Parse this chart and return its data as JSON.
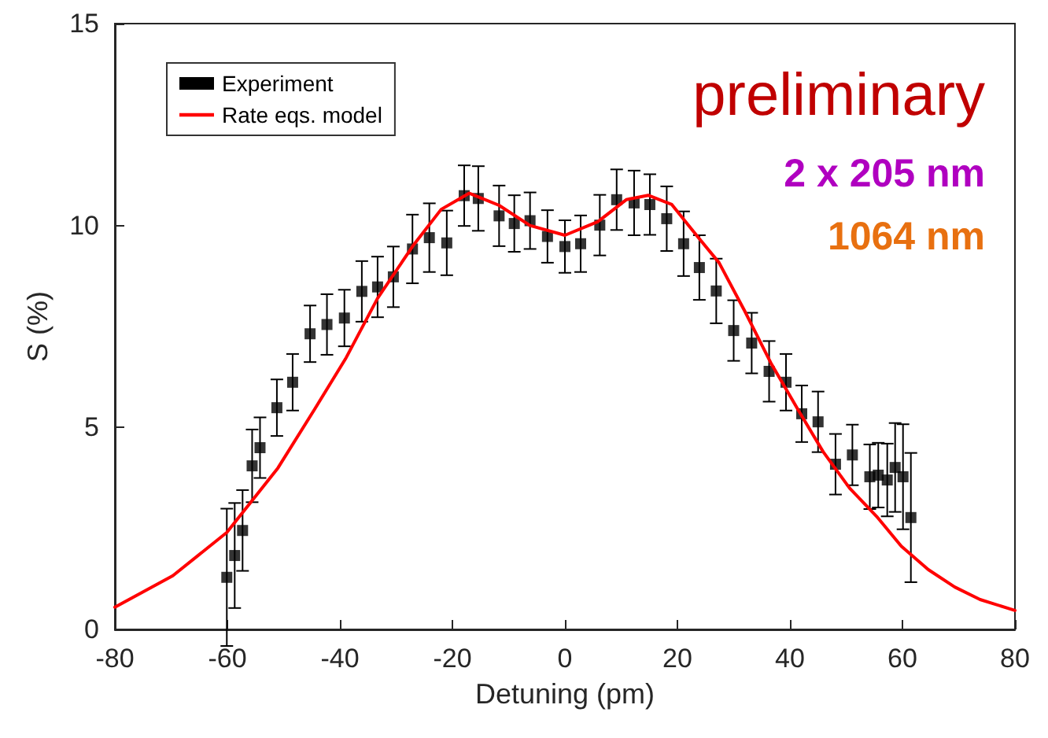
{
  "chart_data": {
    "type": "scatter",
    "xlabel": "Detuning (pm)",
    "ylabel": "S (%)",
    "xlim": [
      -80,
      80
    ],
    "xticks": [
      -80,
      -60,
      -40,
      -20,
      0,
      20,
      40,
      60,
      80
    ],
    "ylim": [
      0,
      15
    ],
    "yticks": [
      0,
      5,
      10,
      15
    ],
    "grid": false,
    "legend": "top left",
    "annotations": [
      "preliminary",
      "2 x 205 nm",
      "1064 nm"
    ],
    "series": [
      {
        "name": "Experiment",
        "color": "#000000",
        "marker": "square",
        "x": [
          -60.1,
          -58.7,
          -57.3,
          -55.6,
          -54.2,
          -51.2,
          -48.4,
          -45.3,
          -42.3,
          -39.2,
          -36.1,
          -33.3,
          -30.5,
          -27.1,
          -24.1,
          -21.0,
          -17.9,
          -15.4,
          -11.7,
          -9.0,
          -6.2,
          -3.1,
          0.0,
          2.8,
          6.2,
          9.2,
          12.3,
          15.1,
          18.1,
          21.1,
          23.9,
          26.9,
          30.0,
          33.2,
          36.3,
          39.3,
          42.1,
          45.0,
          48.1,
          51.1,
          54.2,
          55.7,
          57.3,
          58.7,
          60.1,
          61.5
        ],
        "values": [
          1.29,
          1.83,
          2.45,
          4.05,
          4.5,
          5.49,
          6.12,
          7.32,
          7.55,
          7.71,
          8.37,
          8.48,
          8.73,
          9.42,
          9.7,
          9.57,
          10.74,
          10.67,
          10.24,
          10.05,
          10.12,
          9.73,
          9.48,
          9.55,
          10.01,
          10.64,
          10.56,
          10.52,
          10.17,
          9.55,
          8.96,
          8.38,
          7.4,
          7.09,
          6.39,
          6.12,
          5.34,
          5.14,
          4.09,
          4.32,
          3.78,
          3.82,
          3.7,
          4.01,
          3.78,
          2.77
        ],
        "errors": [
          1.7,
          1.3,
          1.0,
          0.9,
          0.75,
          0.7,
          0.7,
          0.7,
          0.75,
          0.7,
          0.75,
          0.75,
          0.75,
          0.85,
          0.85,
          0.8,
          0.75,
          0.8,
          0.75,
          0.7,
          0.7,
          0.65,
          0.65,
          0.7,
          0.75,
          0.75,
          0.8,
          0.75,
          0.8,
          0.8,
          0.8,
          0.8,
          0.75,
          0.75,
          0.75,
          0.7,
          0.7,
          0.75,
          0.75,
          0.75,
          0.8,
          0.8,
          0.9,
          1.1,
          1.3,
          1.6
        ]
      },
      {
        "name": "Rate eqs. model",
        "type": "line",
        "color": "#ff0000",
        "line_style": "solid",
        "marker": "none",
        "x": [
          -80,
          -69.7,
          -60.1,
          -51,
          -44.5,
          -39,
          -33.3,
          -27,
          -22,
          -17,
          -11.7,
          -6.2,
          0,
          5.9,
          10.9,
          14.8,
          19,
          23.5,
          27.4,
          31.9,
          36.6,
          41.4,
          45.9,
          50.6,
          55.4,
          59.8,
          64.6,
          69.3,
          73.8,
          80
        ],
        "values": [
          0.55,
          1.33,
          2.4,
          4.0,
          5.45,
          6.7,
          8.2,
          9.5,
          10.4,
          10.8,
          10.5,
          10.0,
          9.76,
          10.1,
          10.64,
          10.75,
          10.52,
          9.74,
          9.08,
          7.9,
          6.6,
          5.45,
          4.4,
          3.5,
          2.8,
          2.06,
          1.48,
          1.05,
          0.74,
          0.47
        ]
      }
    ]
  }
}
